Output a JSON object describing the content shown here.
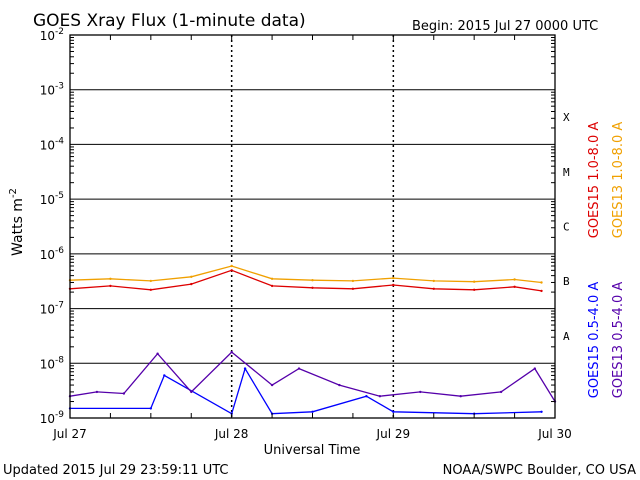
{
  "header": {
    "title": "GOES Xray Flux (1-minute data)",
    "begin": "Begin:  2015 Jul 27 0000 UTC"
  },
  "footer": {
    "updated": "Updated 2015 Jul 29 23:59:11 UTC",
    "credit": "NOAA/SWPC Boulder, CO USA"
  },
  "chart_data": {
    "type": "line",
    "title": "GOES Xray Flux (1-minute data)",
    "xlabel": "Universal Time",
    "ylabel": "Watts m",
    "ylabel_sup": "-2",
    "yscale": "log",
    "ylim": [
      1e-09,
      0.01
    ],
    "xlim": [
      "2015-07-27",
      "2015-07-30"
    ],
    "x_ticks": [
      "Jul 27",
      "Jul 28",
      "Jul 29",
      "Jul 30"
    ],
    "y_ticks": [
      {
        "base": "10",
        "exp": "-2"
      },
      {
        "base": "10",
        "exp": "-3"
      },
      {
        "base": "10",
        "exp": "-4"
      },
      {
        "base": "10",
        "exp": "-5"
      },
      {
        "base": "10",
        "exp": "-6"
      },
      {
        "base": "10",
        "exp": "-7"
      },
      {
        "base": "10",
        "exp": "-8"
      },
      {
        "base": "10",
        "exp": "-9"
      }
    ],
    "flare_classes": [
      "X",
      "M",
      "C",
      "B",
      "A"
    ],
    "grid": true,
    "legend": "right",
    "series": [
      {
        "name": "GOES15 1.0-8.0 A",
        "color": "#dd0000",
        "x": [
          "2015-07-27 00:00",
          "2015-07-27 06:00",
          "2015-07-27 12:00",
          "2015-07-27 18:00",
          "2015-07-28 00:00",
          "2015-07-28 06:00",
          "2015-07-28 12:00",
          "2015-07-28 18:00",
          "2015-07-29 00:00",
          "2015-07-29 06:00",
          "2015-07-29 12:00",
          "2015-07-29 18:00",
          "2015-07-29 22:00"
        ],
        "values": [
          2.3e-07,
          2.6e-07,
          2.2e-07,
          2.8e-07,
          5e-07,
          2.6e-07,
          2.4e-07,
          2.3e-07,
          2.7e-07,
          2.3e-07,
          2.2e-07,
          2.5e-07,
          2.1e-07
        ]
      },
      {
        "name": "GOES13 1.0-8.0 A",
        "color": "#f0a000",
        "x": [
          "2015-07-27 00:00",
          "2015-07-27 06:00",
          "2015-07-27 12:00",
          "2015-07-27 18:00",
          "2015-07-28 00:00",
          "2015-07-28 06:00",
          "2015-07-28 12:00",
          "2015-07-28 18:00",
          "2015-07-29 00:00",
          "2015-07-29 06:00",
          "2015-07-29 12:00",
          "2015-07-29 18:00",
          "2015-07-29 22:00"
        ],
        "values": [
          3.3e-07,
          3.5e-07,
          3.2e-07,
          3.8e-07,
          6e-07,
          3.5e-07,
          3.3e-07,
          3.2e-07,
          3.6e-07,
          3.2e-07,
          3.1e-07,
          3.4e-07,
          3e-07
        ]
      },
      {
        "name": "GOES15 0.5-4.0 A",
        "color": "#0000ff",
        "x": [
          "2015-07-27 00:00",
          "2015-07-27 12:00",
          "2015-07-27 14:00",
          "2015-07-28 00:00",
          "2015-07-28 02:00",
          "2015-07-28 06:00",
          "2015-07-28 12:00",
          "2015-07-28 20:00",
          "2015-07-29 00:00",
          "2015-07-29 12:00",
          "2015-07-29 22:00"
        ],
        "values": [
          1.5e-09,
          1.5e-09,
          6e-09,
          1.2e-09,
          8e-09,
          1.2e-09,
          1.3e-09,
          2.5e-09,
          1.3e-09,
          1.2e-09,
          1.3e-09
        ]
      },
      {
        "name": "GOES13 0.5-4.0 A",
        "color": "#5500aa",
        "x": [
          "2015-07-27 00:00",
          "2015-07-27 04:00",
          "2015-07-27 08:00",
          "2015-07-27 13:00",
          "2015-07-27 18:00",
          "2015-07-28 00:00",
          "2015-07-28 06:00",
          "2015-07-28 10:00",
          "2015-07-28 16:00",
          "2015-07-28 22:00",
          "2015-07-29 04:00",
          "2015-07-29 10:00",
          "2015-07-29 16:00",
          "2015-07-29 21:00",
          "2015-07-29 24:00"
        ],
        "values": [
          2.5e-09,
          3e-09,
          2.8e-09,
          1.5e-08,
          3e-09,
          1.6e-08,
          4e-09,
          8e-09,
          4e-09,
          2.5e-09,
          3e-09,
          2.5e-09,
          3e-09,
          8e-09,
          2e-09
        ]
      }
    ]
  }
}
